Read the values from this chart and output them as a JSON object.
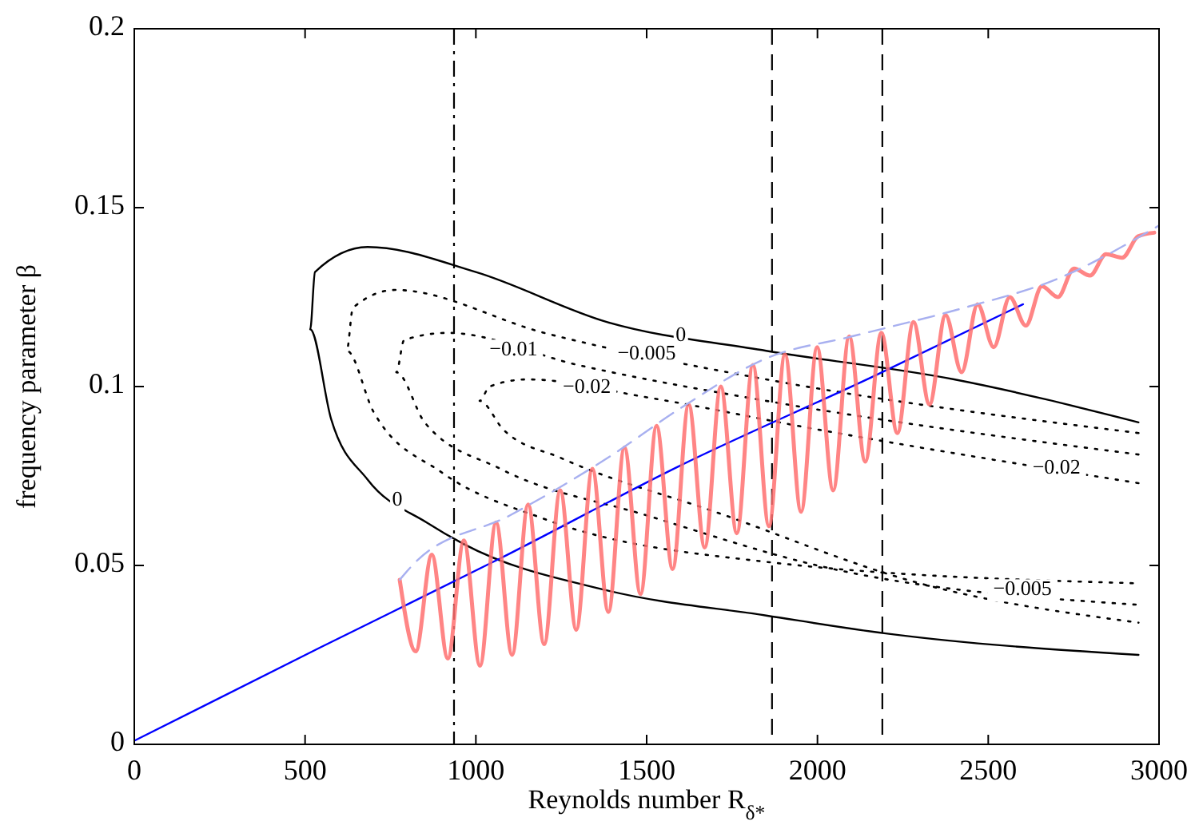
{
  "chart_data": {
    "type": "line",
    "xlabel": "Reynolds number R$_{δ*}$",
    "ylabel": "frequency parameter β",
    "xlim": [
      0,
      3000
    ],
    "xticks": [
      0,
      500,
      1000,
      1500,
      2000,
      2500,
      3000
    ],
    "ylim": [
      0,
      0.2
    ],
    "yticks": [
      0,
      0.05,
      0.1,
      0.15,
      0.2
    ],
    "grid": false,
    "series": [
      {
        "color": "#000000",
        "line_style": "solid",
        "x": [
          2940,
          2400,
          1850,
          1385,
          1000,
          683,
          529,
          515,
          576,
          683,
          856,
          964,
          1385,
          1850,
          2200,
          2940
        ],
        "values": [
          0.09,
          0.102,
          0.11,
          0.118,
          0.132,
          0.139,
          0.132,
          0.116,
          0.091,
          0.074,
          0.062,
          0.056,
          0.043,
          0.036,
          0.031,
          0.025
        ]
      },
      {
        "color": "#000000",
        "line_style": "dotted",
        "x": [
          2940,
          1850,
          1200,
          763,
          640,
          622,
          700,
          900,
          1200,
          1850,
          2940
        ],
        "values": [
          0.087,
          0.102,
          0.115,
          0.127,
          0.122,
          0.11,
          0.093,
          0.076,
          0.063,
          0.051,
          0.045
        ]
      },
      {
        "color": "#000000",
        "line_style": "dotted",
        "x": [
          2940,
          1850,
          1300,
          917,
          790,
          767,
          850,
          1072,
          1500,
          2000,
          2940
        ],
        "values": [
          0.081,
          0.096,
          0.106,
          0.115,
          0.113,
          0.104,
          0.09,
          0.077,
          0.064,
          0.05,
          0.039
        ]
      },
      {
        "color": "#000000",
        "line_style": "dotted",
        "x": [
          2940,
          2000,
          1500,
          1151,
          1040,
          1011,
          1080,
          1250,
          1700,
          2300,
          2940
        ],
        "values": [
          0.073,
          0.088,
          0.097,
          0.102,
          0.1,
          0.096,
          0.088,
          0.08,
          0.065,
          0.045,
          0.034
        ]
      },
      {
        "color": "#0000ff",
        "line_style": "solid",
        "x": [
          0,
          543,
          1072,
          1600,
          2167,
          2602
        ],
        "values": [
          0.001,
          0.027,
          0.052,
          0.078,
          0.103,
          0.123
        ]
      },
      {
        "color": "#ff7070",
        "line_style": "solid",
        "x": [
          777,
          824,
          871,
          918,
          965,
          1012,
          1059,
          1106,
          1153,
          1200,
          1247,
          1294,
          1341,
          1388,
          1435,
          1482,
          1529,
          1576,
          1623,
          1670,
          1717,
          1764,
          1811,
          1858,
          1905,
          1952,
          1999,
          2046,
          2093,
          2140,
          2187,
          2234,
          2281,
          2328,
          2375,
          2422,
          2469,
          2516,
          2563,
          2610,
          2657,
          2704,
          2751,
          2798,
          2845,
          2892,
          2939,
          2986
        ],
        "values": [
          0.046,
          0.026,
          0.053,
          0.024,
          0.057,
          0.022,
          0.062,
          0.025,
          0.067,
          0.028,
          0.071,
          0.032,
          0.077,
          0.037,
          0.083,
          0.042,
          0.089,
          0.049,
          0.095,
          0.055,
          0.1,
          0.059,
          0.106,
          0.061,
          0.109,
          0.065,
          0.111,
          0.071,
          0.114,
          0.079,
          0.115,
          0.087,
          0.118,
          0.095,
          0.12,
          0.104,
          0.123,
          0.111,
          0.125,
          0.117,
          0.128,
          0.125,
          0.133,
          0.131,
          0.137,
          0.136,
          0.142,
          0.143
        ]
      },
      {
        "color": "#a8b0f0",
        "line_style": "dashed",
        "x": [
          777,
          824,
          1100,
          1385,
          1600,
          1853,
          2100,
          2429,
          2700,
          3000
        ],
        "values": [
          0.046,
          0.051,
          0.064,
          0.08,
          0.094,
          0.108,
          0.114,
          0.122,
          0.13,
          0.145
        ]
      }
    ],
    "ref_lines": [
      {
        "axis": "x",
        "value": 936,
        "line_style": "dashdot",
        "color": "#000000"
      },
      {
        "axis": "x",
        "value": 1867,
        "line_style": "dashed",
        "color": "#000000"
      },
      {
        "axis": "x",
        "value": 2190,
        "line_style": "dashed",
        "color": "#000000"
      }
    ],
    "annotations": [
      {
        "text": "0",
        "x": 1600,
        "y": 0.114
      },
      {
        "text": "−0.005",
        "x": 1500,
        "y": 0.109
      },
      {
        "text": "−0.01",
        "x": 1110,
        "y": 0.11
      },
      {
        "text": "0",
        "x": 770,
        "y": 0.068
      },
      {
        "text": "−0.02",
        "x": 1325,
        "y": 0.0995
      },
      {
        "text": "−0.02",
        "x": 2700,
        "y": 0.077
      },
      {
        "text": "−0.005",
        "x": 2600,
        "y": 0.043
      }
    ]
  }
}
